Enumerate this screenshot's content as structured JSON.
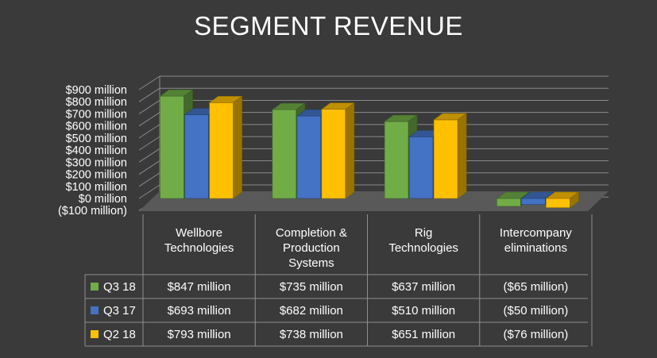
{
  "chart_data": {
    "type": "bar",
    "title": "SEGMENT REVENUE",
    "categories": [
      "Wellbore Technologies",
      "Completion & Production Systems",
      "Rig Technologies",
      "Intercompany eliminations"
    ],
    "category_lines": [
      [
        "Wellbore",
        "Technologies"
      ],
      [
        "Completion &",
        "Production",
        "Systems"
      ],
      [
        "Rig",
        "Technologies"
      ],
      [
        "Intercompany",
        "eliminations"
      ]
    ],
    "series": [
      {
        "name": "Q3 18",
        "color": "#70ad47",
        "values": [
          847,
          735,
          637,
          -65
        ],
        "labels": [
          "$847 million",
          "$735 million",
          "$637 million",
          "($65 million)"
        ]
      },
      {
        "name": "Q3 17",
        "color": "#4472c4",
        "values": [
          693,
          682,
          510,
          -50
        ],
        "labels": [
          "$693 million",
          "$682 million",
          "$510 million",
          "($50 million)"
        ]
      },
      {
        "name": "Q2 18",
        "color": "#ffc000",
        "values": [
          793,
          738,
          651,
          -76
        ],
        "labels": [
          "$793 million",
          "$738 million",
          "$651 million",
          "($76 million)"
        ]
      }
    ],
    "yticks": [
      -100,
      0,
      100,
      200,
      300,
      400,
      500,
      600,
      700,
      800,
      900
    ],
    "ytick_labels": [
      "($100 million)",
      "$0 million",
      "$100 million",
      "$200 million",
      "$300 million",
      "$400 million",
      "$500 million",
      "$600 million",
      "$700 million",
      "$800 million",
      "$900 million"
    ],
    "ylim": [
      -100,
      900
    ],
    "grid": true,
    "legend": "data-table"
  }
}
